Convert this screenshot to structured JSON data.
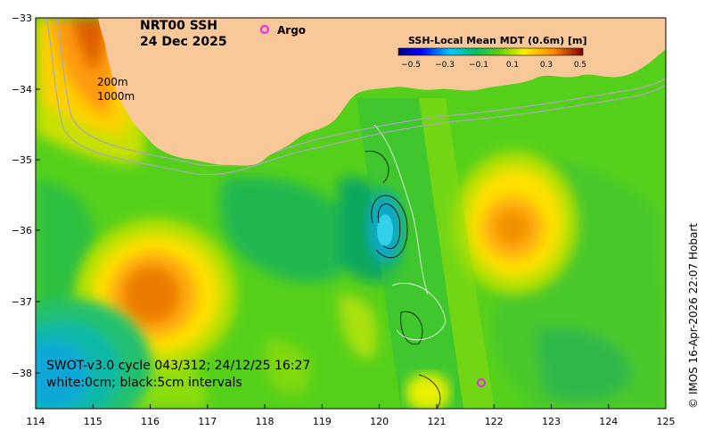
{
  "map": {
    "title": "NRT00 SSH",
    "date": "24 Dec 2025",
    "argo_label": "Argo",
    "isobath_labels": [
      "200m",
      "1000m"
    ],
    "swot_line1": "SWOT-v3.0 cycle 043/312; 24/12/25 16:27",
    "swot_line2": "white:0cm; black:5cm intervals",
    "credit": "© IMOS 16-Apr-2026 22:07 Hobart",
    "x_ticks": [
      "114",
      "115",
      "116",
      "117",
      "118",
      "119",
      "120",
      "121",
      "122",
      "123",
      "124",
      "125"
    ],
    "y_ticks": [
      "−33",
      "−34",
      "−35",
      "−36",
      "−37",
      "−38"
    ],
    "legend": {
      "title": "SSH-Local Mean MDT (0.6m) [m]",
      "ticks": [
        "−0.5",
        "−0.3",
        "−0.1",
        "0.1",
        "0.3",
        "0.5"
      ]
    }
  },
  "colors": {
    "land": "#f9c898",
    "field_base": "#55d01a",
    "argo": "#ee22ee"
  }
}
